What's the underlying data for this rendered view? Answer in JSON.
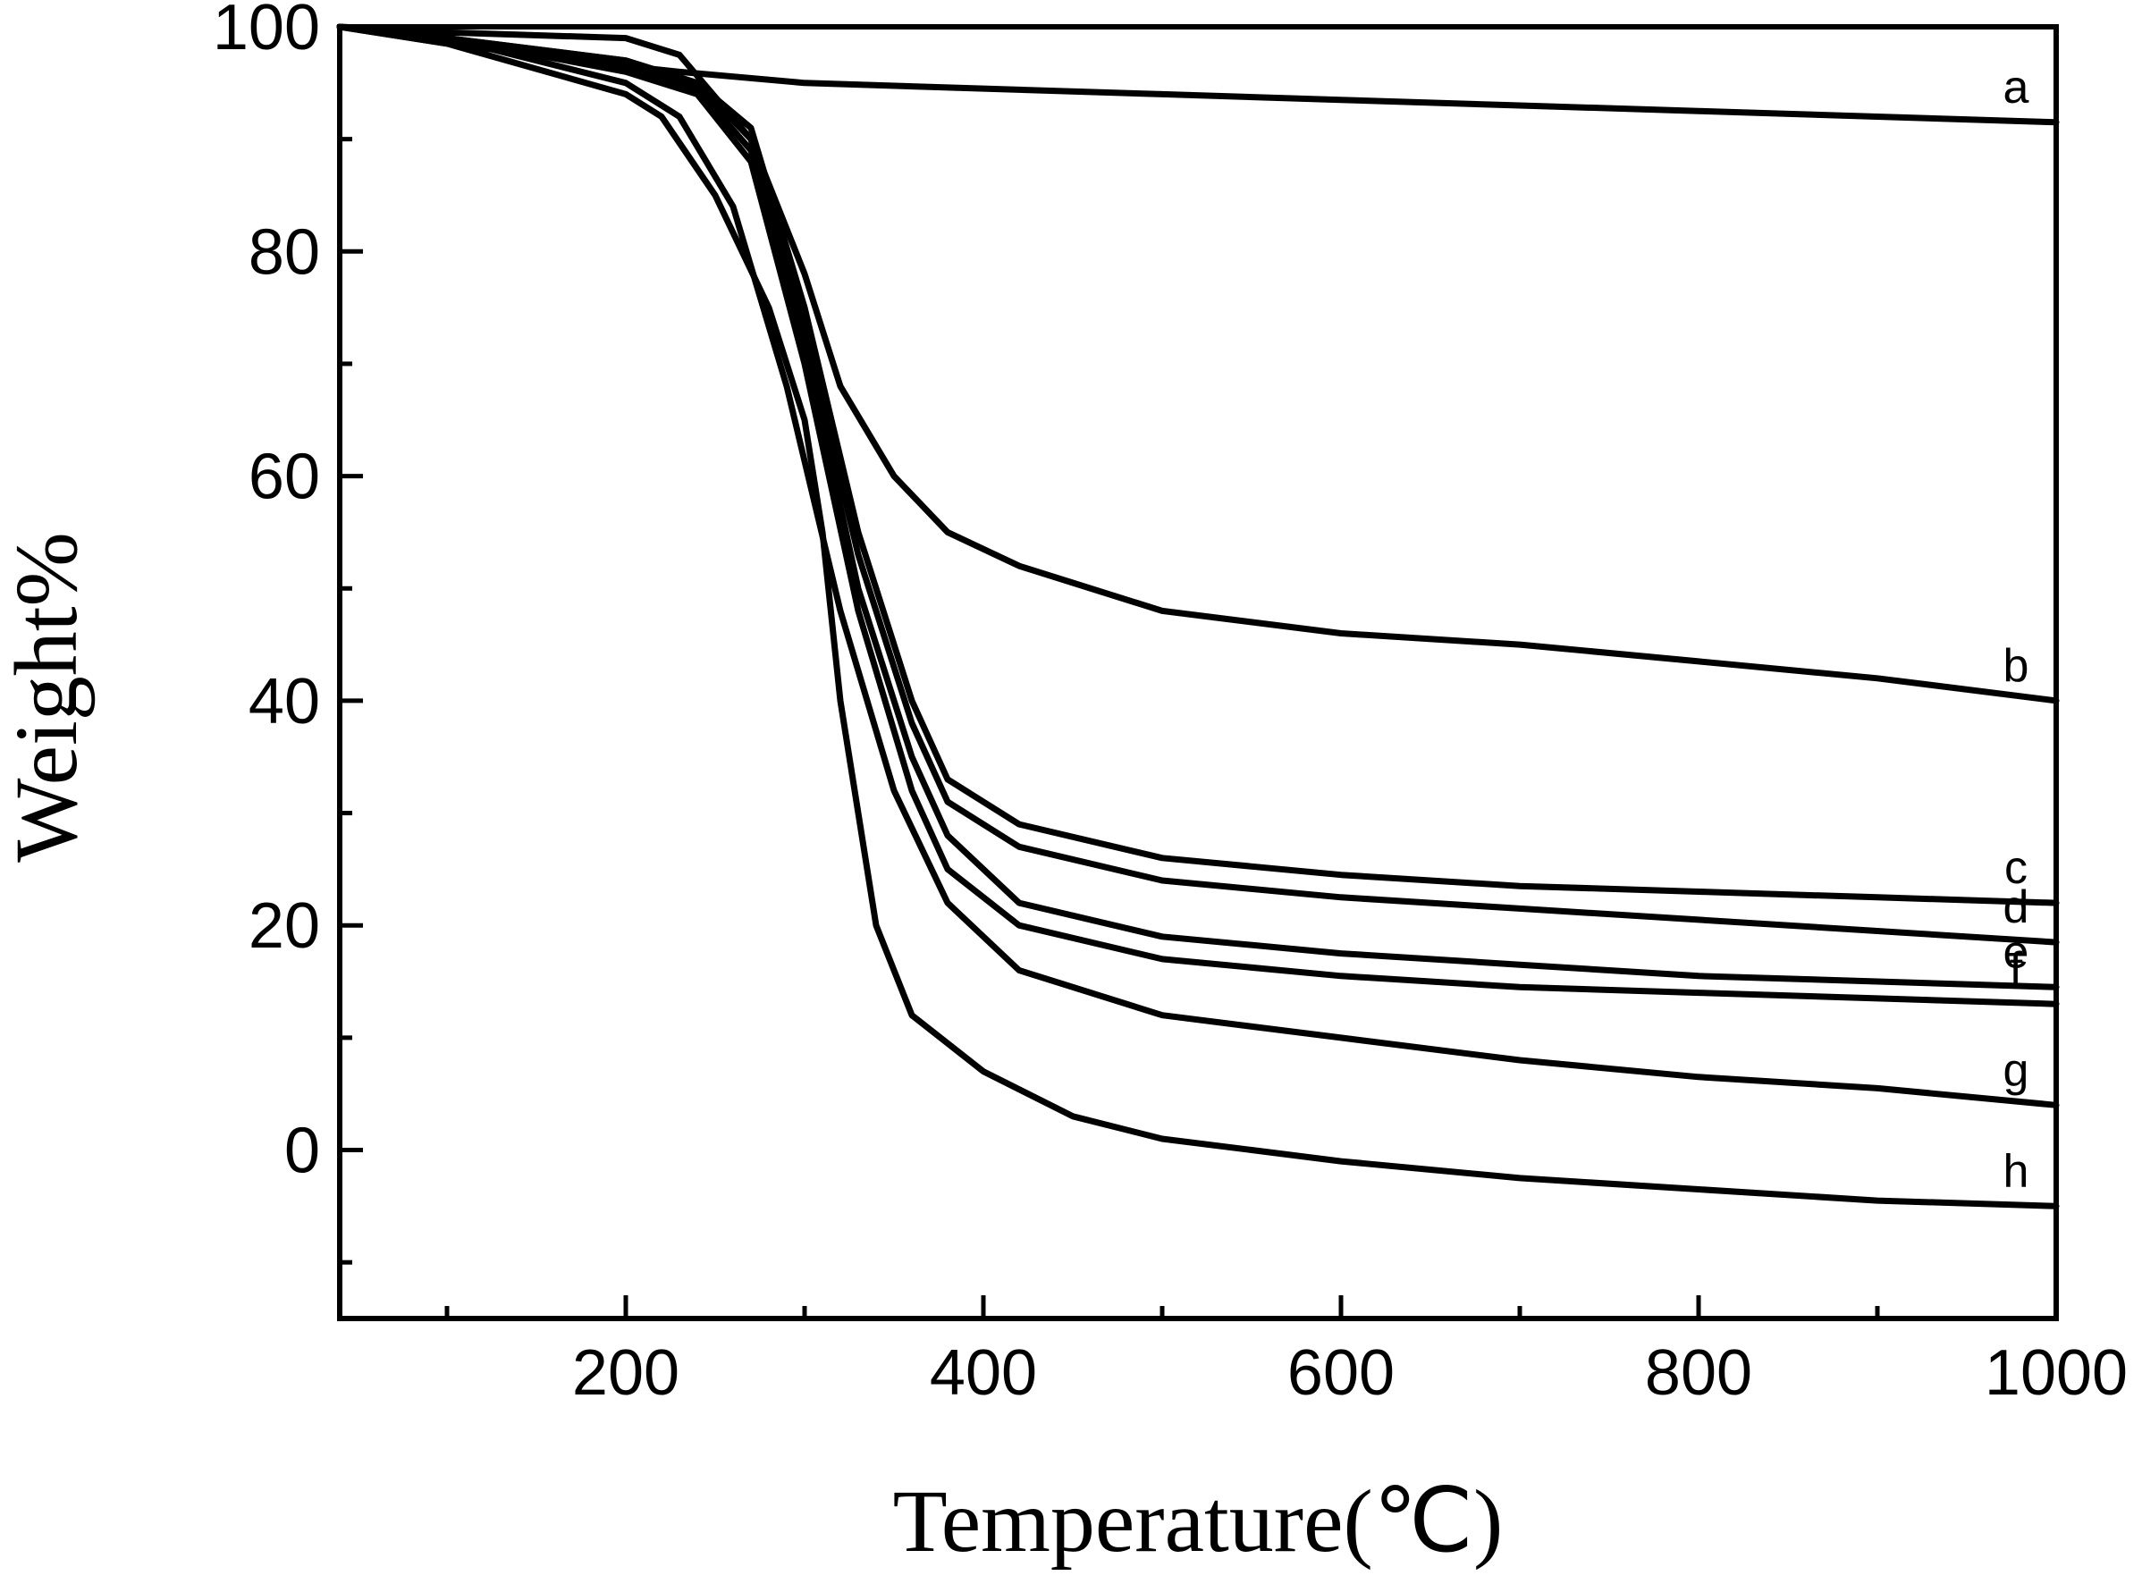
{
  "chart_data": {
    "type": "line",
    "title": "",
    "xlabel": "Temperature(℃)",
    "ylabel": "Weight%",
    "xlim": [
      40,
      1000
    ],
    "ylim": [
      -15,
      100
    ],
    "x_ticks": [
      200,
      400,
      600,
      800,
      1000
    ],
    "y_ticks": [
      0,
      20,
      40,
      60,
      80,
      100
    ],
    "grid": false,
    "legend": "inline labels at right end of each curve",
    "series": [
      {
        "name": "a",
        "x": [
          40,
          100,
          200,
          230,
          300,
          400,
          500,
          600,
          700,
          800,
          900,
          1000
        ],
        "y": [
          100,
          98.5,
          96.5,
          96,
          95,
          94.5,
          94,
          93.5,
          93,
          92.5,
          92,
          91.5
        ]
      },
      {
        "name": "b",
        "x": [
          40,
          100,
          200,
          230,
          270,
          300,
          320,
          350,
          380,
          420,
          500,
          600,
          700,
          800,
          900,
          1000
        ],
        "y": [
          100,
          99.5,
          99,
          97.5,
          90,
          78,
          68,
          60,
          55,
          52,
          48,
          46,
          45,
          43.5,
          42,
          40
        ]
      },
      {
        "name": "c",
        "x": [
          40,
          100,
          200,
          240,
          270,
          300,
          330,
          360,
          380,
          420,
          500,
          600,
          700,
          800,
          900,
          1000
        ],
        "y": [
          100,
          99,
          97,
          95,
          91,
          75,
          55,
          40,
          33,
          29,
          26,
          24.5,
          23.5,
          23,
          22.5,
          22
        ]
      },
      {
        "name": "d",
        "x": [
          40,
          100,
          200,
          240,
          270,
          300,
          330,
          360,
          380,
          420,
          500,
          600,
          700,
          800,
          900,
          1000
        ],
        "y": [
          100,
          99,
          97,
          95,
          90,
          73,
          53,
          38,
          31,
          27,
          24,
          22.5,
          21.5,
          20.5,
          19.5,
          18.5
        ]
      },
      {
        "name": "e",
        "x": [
          40,
          100,
          200,
          240,
          270,
          300,
          330,
          360,
          380,
          420,
          500,
          600,
          700,
          800,
          900,
          1000
        ],
        "y": [
          100,
          99,
          96.5,
          94.5,
          89,
          72,
          50,
          35,
          28,
          22,
          19,
          17.5,
          16.5,
          15.5,
          15,
          14.5
        ]
      },
      {
        "name": "f",
        "x": [
          40,
          100,
          200,
          240,
          270,
          300,
          330,
          360,
          380,
          420,
          500,
          600,
          700,
          800,
          900,
          1000
        ],
        "y": [
          100,
          99,
          96,
          94,
          88,
          70,
          48,
          32,
          25,
          20,
          17,
          15.5,
          14.5,
          14,
          13.5,
          13
        ]
      },
      {
        "name": "g",
        "x": [
          40,
          100,
          200,
          230,
          260,
          290,
          320,
          350,
          380,
          420,
          500,
          600,
          700,
          800,
          900,
          1000
        ],
        "y": [
          100,
          99,
          95,
          92,
          84,
          68,
          48,
          32,
          22,
          16,
          12,
          10,
          8,
          6.5,
          5.5,
          4
        ]
      },
      {
        "name": "h",
        "x": [
          40,
          100,
          200,
          220,
          250,
          280,
          300,
          310,
          320,
          340,
          360,
          400,
          450,
          500,
          550,
          600,
          700,
          800,
          900,
          1000
        ],
        "y": [
          100,
          98.5,
          94,
          92,
          85,
          75,
          65,
          55,
          40,
          20,
          12,
          7,
          3,
          1,
          0,
          -1,
          -2.5,
          -3.5,
          -4.5,
          -5
        ]
      }
    ]
  }
}
